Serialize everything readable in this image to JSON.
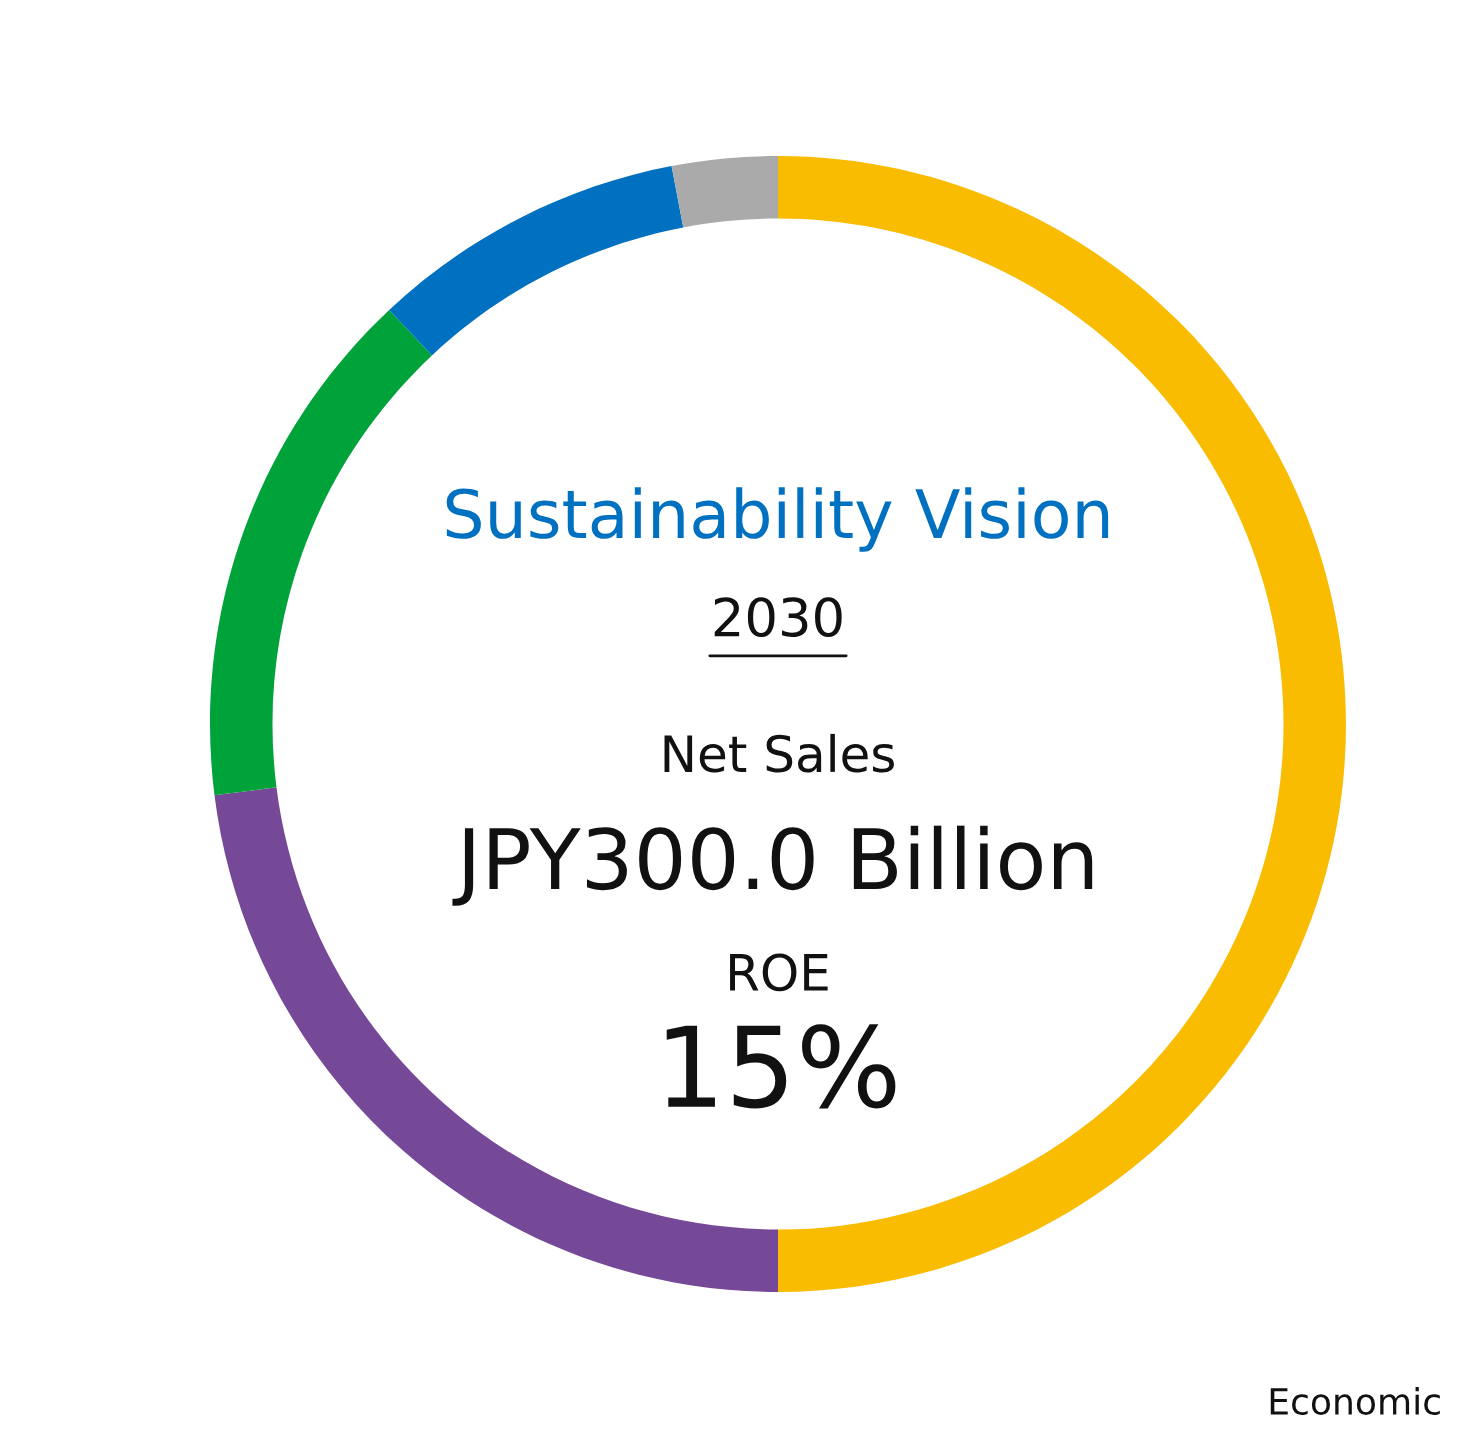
{
  "chart_data": {
    "type": "donut",
    "title": "Sustainability Vision",
    "subtitle": "2030",
    "categories": [
      null,
      null,
      null,
      null,
      null
    ],
    "values": [
      50,
      23,
      15,
      9,
      3
    ],
    "colors": [
      "#f9bc00",
      "#754898",
      "#00a33a",
      "#0070c0",
      "#aaaaaa"
    ],
    "annotations": [
      "Net Sales",
      "JPY300.0 Billion",
      "ROE",
      "15%",
      "Economic"
    ],
    "legend": false
  }
}
